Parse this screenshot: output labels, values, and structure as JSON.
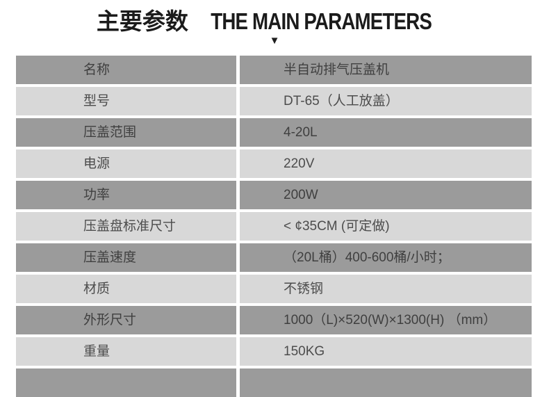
{
  "page": {
    "title_cn": "主要参数",
    "title_en": "THE MAIN PARAMETERS"
  },
  "icons": {
    "down_triangle": "▼"
  },
  "colors": {
    "row_dark": "#9b9b9b",
    "row_light": "#d8d8d8",
    "title_text": "#1b1b1b",
    "table_text_dark_row": "#3f3f3f",
    "table_text_light_row": "#4c4c4c",
    "background": "#ffffff"
  },
  "table": {
    "rows": [
      {
        "label": "名称",
        "value": "半自动排气压盖机"
      },
      {
        "label": "型号",
        "value": "DT-65（人工放盖）"
      },
      {
        "label": "压盖范围",
        "value": "4-20L"
      },
      {
        "label": "电源",
        "value": "220V"
      },
      {
        "label": "功率",
        "value": "200W"
      },
      {
        "label": "压盖盘标准尺寸",
        "value": "< ¢35CM (可定做)"
      },
      {
        "label": "压盖速度",
        "value": "（20L桶）400-600桶/小时；"
      },
      {
        "label": "材质",
        "value": "不锈钢"
      },
      {
        "label": "外形尺寸",
        "value": "1000（L)×520(W)×1300(H) （mm）"
      },
      {
        "label": "重量",
        "value": "150KG"
      }
    ]
  }
}
